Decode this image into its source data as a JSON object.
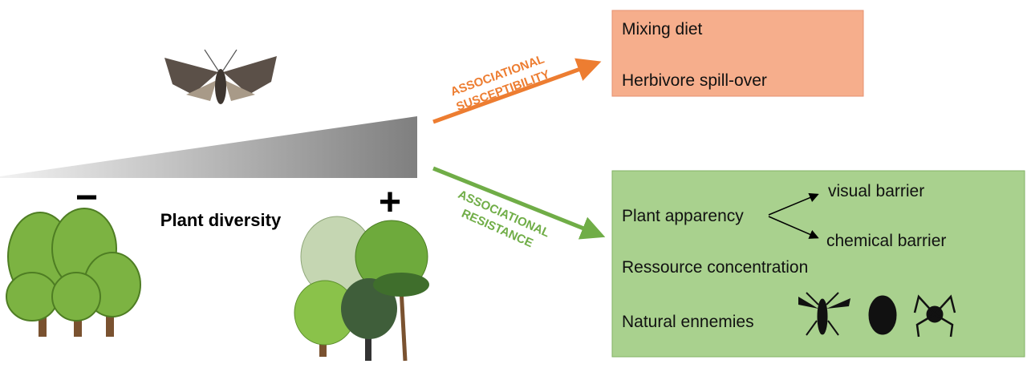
{
  "gradient": {
    "label": "Plant diversity",
    "low_label": "−",
    "high_label": "+"
  },
  "susceptibility": {
    "label_lines": [
      "ASSOCIATIONAL",
      "SUSCEPTIBILITY"
    ],
    "items": [
      "Mixing diet",
      "Herbivore spill-over"
    ]
  },
  "resistance": {
    "label_lines": [
      "ASSOCIATIONAL",
      "RESISTANCE"
    ],
    "apparency": {
      "label": "Plant apparency",
      "barriers": [
        "visual barrier",
        "chemical barrier"
      ]
    },
    "items": [
      "Ressource concentration",
      "Natural ennemies"
    ]
  }
}
